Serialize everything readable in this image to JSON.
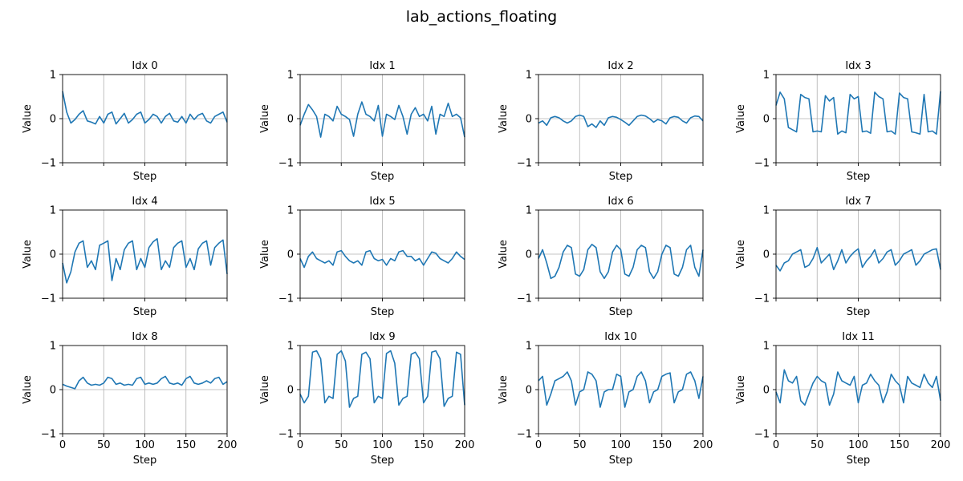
{
  "figure": {
    "title": "lab_actions_floating"
  },
  "chart_data": [
    {
      "type": "line",
      "title": "Idx 0",
      "xlabel": "Step",
      "ylabel": "Value",
      "xlim": [
        0,
        200
      ],
      "ylim": [
        -1,
        1
      ],
      "xticks": [
        0,
        50,
        100,
        150,
        200
      ],
      "yticks": [
        -1,
        0,
        1
      ],
      "grid": "x-major-and-y0",
      "show_xticklabels": false,
      "color": "#1f77b4",
      "x": [
        0,
        5,
        10,
        15,
        20,
        25,
        30,
        35,
        40,
        45,
        50,
        55,
        60,
        65,
        70,
        75,
        80,
        85,
        90,
        95,
        100,
        105,
        110,
        115,
        120,
        125,
        130,
        135,
        140,
        145,
        150,
        155,
        160,
        165,
        170,
        175,
        180,
        185,
        190,
        195,
        200
      ],
      "y": [
        0.62,
        0.15,
        -0.1,
        -0.02,
        0.1,
        0.18,
        -0.05,
        -0.08,
        -0.12,
        0.05,
        -0.1,
        0.1,
        0.15,
        -0.12,
        0.0,
        0.12,
        -0.1,
        -0.02,
        0.1,
        0.15,
        -0.1,
        -0.02,
        0.1,
        0.05,
        -0.1,
        0.05,
        0.12,
        -0.05,
        -0.08,
        0.05,
        -0.1,
        0.1,
        -0.02,
        0.08,
        0.12,
        -0.05,
        -0.1,
        0.05,
        0.1,
        0.15,
        -0.08
      ]
    },
    {
      "type": "line",
      "title": "Idx 1",
      "xlabel": "Step",
      "ylabel": "Value",
      "xlim": [
        0,
        200
      ],
      "ylim": [
        -1,
        1
      ],
      "xticks": [
        0,
        50,
        100,
        150,
        200
      ],
      "yticks": [
        -1,
        0,
        1
      ],
      "grid": "x-major-and-y0",
      "show_xticklabels": false,
      "color": "#1f77b4",
      "x": [
        0,
        5,
        10,
        15,
        20,
        25,
        30,
        35,
        40,
        45,
        50,
        55,
        60,
        65,
        70,
        75,
        80,
        85,
        90,
        95,
        100,
        105,
        110,
        115,
        120,
        125,
        130,
        135,
        140,
        145,
        150,
        155,
        160,
        165,
        170,
        175,
        180,
        185,
        190,
        195,
        200
      ],
      "y": [
        -0.15,
        0.1,
        0.32,
        0.2,
        0.05,
        -0.42,
        0.1,
        0.05,
        -0.05,
        0.28,
        0.1,
        0.05,
        -0.02,
        -0.4,
        0.1,
        0.38,
        0.1,
        0.05,
        -0.05,
        0.3,
        -0.4,
        0.1,
        0.05,
        -0.02,
        0.3,
        0.05,
        -0.35,
        0.1,
        0.25,
        0.05,
        0.1,
        -0.05,
        0.28,
        -0.35,
        0.1,
        0.05,
        0.35,
        0.05,
        0.1,
        0.02,
        -0.42
      ]
    },
    {
      "type": "line",
      "title": "Idx 2",
      "xlabel": "Step",
      "ylabel": "Value",
      "xlim": [
        0,
        200
      ],
      "ylim": [
        -1,
        1
      ],
      "xticks": [
        0,
        50,
        100,
        150,
        200
      ],
      "yticks": [
        -1,
        0,
        1
      ],
      "grid": "x-major-and-y0",
      "show_xticklabels": false,
      "color": "#1f77b4",
      "x": [
        0,
        5,
        10,
        15,
        20,
        25,
        30,
        35,
        40,
        45,
        50,
        55,
        60,
        65,
        70,
        75,
        80,
        85,
        90,
        95,
        100,
        105,
        110,
        115,
        120,
        125,
        130,
        135,
        140,
        145,
        150,
        155,
        160,
        165,
        170,
        175,
        180,
        185,
        190,
        195,
        200
      ],
      "y": [
        -0.1,
        -0.05,
        -0.15,
        0.02,
        0.05,
        0.02,
        -0.05,
        -0.1,
        -0.05,
        0.05,
        0.08,
        0.05,
        -0.18,
        -0.12,
        -0.2,
        -0.05,
        -0.15,
        0.02,
        0.05,
        0.03,
        -0.02,
        -0.08,
        -0.15,
        -0.05,
        0.05,
        0.08,
        0.06,
        0.0,
        -0.08,
        -0.02,
        -0.05,
        -0.12,
        0.02,
        0.05,
        0.03,
        -0.05,
        -0.1,
        0.02,
        0.06,
        0.05,
        -0.05
      ]
    },
    {
      "type": "line",
      "title": "Idx 3",
      "xlabel": "Step",
      "ylabel": "Value",
      "xlim": [
        0,
        200
      ],
      "ylim": [
        -1,
        1
      ],
      "xticks": [
        0,
        50,
        100,
        150,
        200
      ],
      "yticks": [
        -1,
        0,
        1
      ],
      "grid": "x-major-and-y0",
      "show_xticklabels": false,
      "color": "#1f77b4",
      "x": [
        0,
        5,
        10,
        15,
        20,
        25,
        30,
        35,
        40,
        45,
        50,
        55,
        60,
        65,
        70,
        75,
        80,
        85,
        90,
        95,
        100,
        105,
        110,
        115,
        120,
        125,
        130,
        135,
        140,
        145,
        150,
        155,
        160,
        165,
        170,
        175,
        180,
        185,
        190,
        195,
        200
      ],
      "y": [
        0.3,
        0.6,
        0.45,
        -0.2,
        -0.25,
        -0.3,
        0.55,
        0.48,
        0.45,
        -0.3,
        -0.28,
        -0.3,
        0.52,
        0.4,
        0.48,
        -0.35,
        -0.28,
        -0.32,
        0.55,
        0.45,
        0.5,
        -0.3,
        -0.28,
        -0.33,
        0.6,
        0.5,
        0.45,
        -0.3,
        -0.28,
        -0.35,
        0.58,
        0.48,
        0.45,
        -0.3,
        -0.32,
        -0.35,
        0.55,
        -0.3,
        -0.28,
        -0.35,
        0.62
      ]
    },
    {
      "type": "line",
      "title": "Idx 4",
      "xlabel": "Step",
      "ylabel": "Value",
      "xlim": [
        0,
        200
      ],
      "ylim": [
        -1,
        1
      ],
      "xticks": [
        0,
        50,
        100,
        150,
        200
      ],
      "yticks": [
        -1,
        0,
        1
      ],
      "grid": "x-major-and-y0",
      "show_xticklabels": false,
      "color": "#1f77b4",
      "x": [
        0,
        5,
        10,
        15,
        20,
        25,
        30,
        35,
        40,
        45,
        50,
        55,
        60,
        65,
        70,
        75,
        80,
        85,
        90,
        95,
        100,
        105,
        110,
        115,
        120,
        125,
        130,
        135,
        140,
        145,
        150,
        155,
        160,
        165,
        170,
        175,
        180,
        185,
        190,
        195,
        200
      ],
      "y": [
        -0.2,
        -0.65,
        -0.4,
        0.05,
        0.25,
        0.3,
        -0.3,
        -0.15,
        -0.35,
        0.2,
        0.25,
        0.3,
        -0.6,
        -0.1,
        -0.35,
        0.1,
        0.25,
        0.3,
        -0.35,
        -0.1,
        -0.3,
        0.15,
        0.28,
        0.35,
        -0.35,
        -0.15,
        -0.3,
        0.15,
        0.25,
        0.3,
        -0.3,
        -0.1,
        -0.35,
        0.12,
        0.25,
        0.3,
        -0.25,
        0.15,
        0.25,
        0.32,
        -0.45
      ]
    },
    {
      "type": "line",
      "title": "Idx 5",
      "xlabel": "Step",
      "ylabel": "Value",
      "xlim": [
        0,
        200
      ],
      "ylim": [
        -1,
        1
      ],
      "xticks": [
        0,
        50,
        100,
        150,
        200
      ],
      "yticks": [
        -1,
        0,
        1
      ],
      "grid": "x-major-and-y0",
      "show_xticklabels": false,
      "color": "#1f77b4",
      "x": [
        0,
        5,
        10,
        15,
        20,
        25,
        30,
        35,
        40,
        45,
        50,
        55,
        60,
        65,
        70,
        75,
        80,
        85,
        90,
        95,
        100,
        105,
        110,
        115,
        120,
        125,
        130,
        135,
        140,
        145,
        150,
        155,
        160,
        165,
        170,
        175,
        180,
        185,
        190,
        195,
        200
      ],
      "y": [
        -0.1,
        -0.3,
        -0.05,
        0.05,
        -0.1,
        -0.15,
        -0.2,
        -0.15,
        -0.25,
        0.05,
        0.08,
        -0.05,
        -0.15,
        -0.2,
        -0.15,
        -0.25,
        0.05,
        0.08,
        -0.1,
        -0.15,
        -0.12,
        -0.25,
        -0.1,
        -0.15,
        0.05,
        0.08,
        -0.05,
        -0.05,
        -0.15,
        -0.1,
        -0.25,
        -0.1,
        0.05,
        0.02,
        -0.1,
        -0.15,
        -0.2,
        -0.1,
        0.05,
        -0.05,
        -0.12
      ]
    },
    {
      "type": "line",
      "title": "Idx 6",
      "xlabel": "Step",
      "ylabel": "Value",
      "xlim": [
        0,
        200
      ],
      "ylim": [
        -1,
        1
      ],
      "xticks": [
        0,
        50,
        100,
        150,
        200
      ],
      "yticks": [
        -1,
        0,
        1
      ],
      "grid": "x-major-and-y0",
      "show_xticklabels": false,
      "color": "#1f77b4",
      "x": [
        0,
        5,
        10,
        15,
        20,
        25,
        30,
        35,
        40,
        45,
        50,
        55,
        60,
        65,
        70,
        75,
        80,
        85,
        90,
        95,
        100,
        105,
        110,
        115,
        120,
        125,
        130,
        135,
        140,
        145,
        150,
        155,
        160,
        165,
        170,
        175,
        180,
        185,
        190,
        195,
        200
      ],
      "y": [
        -0.1,
        0.1,
        -0.2,
        -0.55,
        -0.5,
        -0.3,
        0.05,
        0.2,
        0.15,
        -0.45,
        -0.5,
        -0.35,
        0.1,
        0.22,
        0.15,
        -0.4,
        -0.55,
        -0.4,
        0.05,
        0.2,
        0.1,
        -0.45,
        -0.5,
        -0.3,
        0.1,
        0.2,
        0.15,
        -0.4,
        -0.55,
        -0.4,
        0.0,
        0.2,
        0.15,
        -0.45,
        -0.5,
        -0.3,
        0.1,
        0.2,
        -0.3,
        -0.5,
        0.1
      ]
    },
    {
      "type": "line",
      "title": "Idx 7",
      "xlabel": "Step",
      "ylabel": "Value",
      "xlim": [
        0,
        200
      ],
      "ylim": [
        -1,
        1
      ],
      "xticks": [
        0,
        50,
        100,
        150,
        200
      ],
      "yticks": [
        -1,
        0,
        1
      ],
      "grid": "x-major-and-y0",
      "show_xticklabels": false,
      "color": "#1f77b4",
      "x": [
        0,
        5,
        10,
        15,
        20,
        25,
        30,
        35,
        40,
        45,
        50,
        55,
        60,
        65,
        70,
        75,
        80,
        85,
        90,
        95,
        100,
        105,
        110,
        115,
        120,
        125,
        130,
        135,
        140,
        145,
        150,
        155,
        160,
        165,
        170,
        175,
        180,
        185,
        190,
        195,
        200
      ],
      "y": [
        -0.25,
        -0.38,
        -0.2,
        -0.15,
        0.0,
        0.05,
        0.1,
        -0.3,
        -0.25,
        -0.1,
        0.15,
        -0.2,
        -0.1,
        0.0,
        -0.35,
        -0.15,
        0.1,
        -0.2,
        -0.05,
        0.05,
        0.12,
        -0.3,
        -0.15,
        -0.05,
        0.1,
        -0.2,
        -0.1,
        0.05,
        0.1,
        -0.25,
        -0.15,
        0.0,
        0.05,
        0.1,
        -0.25,
        -0.15,
        0.0,
        0.05,
        0.1,
        0.12,
        -0.35
      ]
    },
    {
      "type": "line",
      "title": "Idx 8",
      "xlabel": "Step",
      "ylabel": "Value",
      "xlim": [
        0,
        200
      ],
      "ylim": [
        -1,
        1
      ],
      "xticks": [
        0,
        50,
        100,
        150,
        200
      ],
      "yticks": [
        -1,
        0,
        1
      ],
      "grid": "x-major-and-y0",
      "show_xticklabels": true,
      "color": "#1f77b4",
      "x": [
        0,
        5,
        10,
        15,
        20,
        25,
        30,
        35,
        40,
        45,
        50,
        55,
        60,
        65,
        70,
        75,
        80,
        85,
        90,
        95,
        100,
        105,
        110,
        115,
        120,
        125,
        130,
        135,
        140,
        145,
        150,
        155,
        160,
        165,
        170,
        175,
        180,
        185,
        190,
        195,
        200
      ],
      "y": [
        0.12,
        0.08,
        0.05,
        0.02,
        0.2,
        0.28,
        0.15,
        0.1,
        0.12,
        0.1,
        0.15,
        0.28,
        0.25,
        0.12,
        0.15,
        0.1,
        0.12,
        0.1,
        0.25,
        0.28,
        0.12,
        0.15,
        0.12,
        0.15,
        0.25,
        0.3,
        0.15,
        0.12,
        0.15,
        0.1,
        0.25,
        0.3,
        0.15,
        0.12,
        0.15,
        0.2,
        0.15,
        0.25,
        0.28,
        0.12,
        0.18
      ]
    },
    {
      "type": "line",
      "title": "Idx 9",
      "xlabel": "Step",
      "ylabel": "Value",
      "xlim": [
        0,
        200
      ],
      "ylim": [
        -1,
        1
      ],
      "xticks": [
        0,
        50,
        100,
        150,
        200
      ],
      "yticks": [
        -1,
        0,
        1
      ],
      "grid": "x-major-and-y0",
      "show_xticklabels": true,
      "color": "#1f77b4",
      "x": [
        0,
        5,
        10,
        15,
        20,
        25,
        30,
        35,
        40,
        45,
        50,
        55,
        60,
        65,
        70,
        75,
        80,
        85,
        90,
        95,
        100,
        105,
        110,
        115,
        120,
        125,
        130,
        135,
        140,
        145,
        150,
        155,
        160,
        165,
        170,
        175,
        180,
        185,
        190,
        195,
        200
      ],
      "y": [
        -0.1,
        -0.3,
        -0.15,
        0.85,
        0.88,
        0.7,
        -0.3,
        -0.15,
        -0.2,
        0.8,
        0.88,
        0.65,
        -0.4,
        -0.2,
        -0.15,
        0.8,
        0.85,
        0.7,
        -0.3,
        -0.15,
        -0.2,
        0.82,
        0.88,
        0.6,
        -0.35,
        -0.2,
        -0.15,
        0.8,
        0.85,
        0.7,
        -0.3,
        -0.15,
        0.85,
        0.88,
        0.7,
        -0.38,
        -0.2,
        -0.15,
        0.85,
        0.8,
        -0.35
      ]
    },
    {
      "type": "line",
      "title": "Idx 10",
      "xlabel": "Step",
      "ylabel": "Value",
      "xlim": [
        0,
        200
      ],
      "ylim": [
        -1,
        1
      ],
      "xticks": [
        0,
        50,
        100,
        150,
        200
      ],
      "yticks": [
        -1,
        0,
        1
      ],
      "grid": "x-major-and-y0",
      "show_xticklabels": true,
      "color": "#1f77b4",
      "x": [
        0,
        5,
        10,
        15,
        20,
        25,
        30,
        35,
        40,
        45,
        50,
        55,
        60,
        65,
        70,
        75,
        80,
        85,
        90,
        95,
        100,
        105,
        110,
        115,
        120,
        125,
        130,
        135,
        140,
        145,
        150,
        155,
        160,
        165,
        170,
        175,
        180,
        185,
        190,
        195,
        200
      ],
      "y": [
        0.2,
        0.3,
        -0.35,
        -0.1,
        0.2,
        0.25,
        0.3,
        0.4,
        0.2,
        -0.35,
        -0.05,
        0.0,
        0.4,
        0.35,
        0.2,
        -0.4,
        -0.05,
        0.0,
        0.0,
        0.35,
        0.3,
        -0.4,
        -0.05,
        0.0,
        0.3,
        0.4,
        0.2,
        -0.3,
        -0.05,
        0.0,
        0.3,
        0.35,
        0.38,
        -0.3,
        -0.05,
        0.0,
        0.35,
        0.4,
        0.2,
        -0.2,
        0.3
      ]
    },
    {
      "type": "line",
      "title": "Idx 11",
      "xlabel": "Step",
      "ylabel": "Value",
      "xlim": [
        0,
        200
      ],
      "ylim": [
        -1,
        1
      ],
      "xticks": [
        0,
        50,
        100,
        150,
        200
      ],
      "yticks": [
        -1,
        0,
        1
      ],
      "grid": "x-major-and-y0",
      "show_xticklabels": true,
      "color": "#1f77b4",
      "x": [
        0,
        5,
        10,
        15,
        20,
        25,
        30,
        35,
        40,
        45,
        50,
        55,
        60,
        65,
        70,
        75,
        80,
        85,
        90,
        95,
        100,
        105,
        110,
        115,
        120,
        125,
        130,
        135,
        140,
        145,
        150,
        155,
        160,
        165,
        170,
        175,
        180,
        185,
        190,
        195,
        200
      ],
      "y": [
        -0.05,
        -0.3,
        0.45,
        0.2,
        0.15,
        0.3,
        -0.25,
        -0.35,
        -0.1,
        0.15,
        0.3,
        0.2,
        0.15,
        -0.35,
        -0.1,
        0.4,
        0.2,
        0.15,
        0.1,
        0.3,
        -0.3,
        0.1,
        0.15,
        0.35,
        0.2,
        0.1,
        -0.3,
        -0.05,
        0.35,
        0.2,
        0.1,
        -0.3,
        0.3,
        0.15,
        0.1,
        0.05,
        0.35,
        0.15,
        0.05,
        0.3,
        -0.25
      ]
    }
  ]
}
